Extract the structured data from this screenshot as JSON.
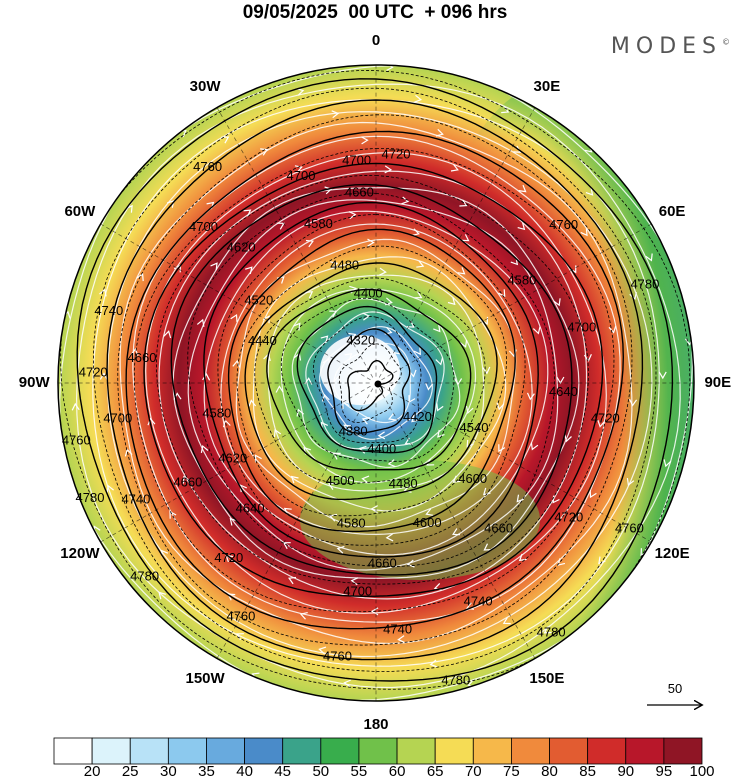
{
  "title": "09/05/2025  00 UTC  + 096 hrs",
  "brand": "MODES",
  "brand_mark": "©",
  "longitude_labels": [
    {
      "text": "0",
      "lon": 0
    },
    {
      "text": "30E",
      "lon": 30
    },
    {
      "text": "60E",
      "lon": 60
    },
    {
      "text": "90E",
      "lon": 90
    },
    {
      "text": "120E",
      "lon": 120
    },
    {
      "text": "150E",
      "lon": 150
    },
    {
      "text": "180",
      "lon": 180
    },
    {
      "text": "150W",
      "lon": -150
    },
    {
      "text": "120W",
      "lon": -120
    },
    {
      "text": "90W",
      "lon": -90
    },
    {
      "text": "60W",
      "lon": -60
    },
    {
      "text": "30W",
      "lon": -30
    }
  ],
  "contour_labels": [
    {
      "text": "4720",
      "lon": 5,
      "r": 0.72
    },
    {
      "text": "4700",
      "lon": -20,
      "r": 0.69
    },
    {
      "text": "4660",
      "lon": -5,
      "r": 0.6
    },
    {
      "text": "4760",
      "lon": -38,
      "r": 0.86
    },
    {
      "text": "4700",
      "lon": -48,
      "r": 0.73
    },
    {
      "text": "4620",
      "lon": -45,
      "r": 0.6
    },
    {
      "text": "4580",
      "lon": -20,
      "r": 0.53
    },
    {
      "text": "4480",
      "lon": -15,
      "r": 0.38
    },
    {
      "text": "4400",
      "lon": -5,
      "r": 0.28
    },
    {
      "text": "4520",
      "lon": -55,
      "r": 0.45
    },
    {
      "text": "4440",
      "lon": -70,
      "r": 0.38
    },
    {
      "text": "4320",
      "lon": -20,
      "r": 0.14
    },
    {
      "text": "4380",
      "lon": -155,
      "r": 0.17
    },
    {
      "text": "4740",
      "lon": -75,
      "r": 0.87
    },
    {
      "text": "4720",
      "lon": -88,
      "r": 0.89
    },
    {
      "text": "4700",
      "lon": -98,
      "r": 0.82
    },
    {
      "text": "4660",
      "lon": -84,
      "r": 0.74
    },
    {
      "text": "4760",
      "lon": -101,
      "r": 0.96
    },
    {
      "text": "4580",
      "lon": -101,
      "r": 0.51
    },
    {
      "text": "4780",
      "lon": -112,
      "r": 0.97
    },
    {
      "text": "4740",
      "lon": -116,
      "r": 0.84
    },
    {
      "text": "4660",
      "lon": -118,
      "r": 0.67
    },
    {
      "text": "4620",
      "lon": -118,
      "r": 0.51
    },
    {
      "text": "4640",
      "lon": -135,
      "r": 0.56
    },
    {
      "text": "4720",
      "lon": -140,
      "r": 0.72
    },
    {
      "text": "4780",
      "lon": -130,
      "r": 0.95
    },
    {
      "text": "4760",
      "lon": -150,
      "r": 0.85
    },
    {
      "text": "4580",
      "lon": -170,
      "r": 0.45
    },
    {
      "text": "4500",
      "lon": -160,
      "r": 0.33
    },
    {
      "text": "4400",
      "lon": 175,
      "r": 0.21
    },
    {
      "text": "4480",
      "lon": 165,
      "r": 0.33
    },
    {
      "text": "4420",
      "lon": 130,
      "r": 0.17
    },
    {
      "text": "4600",
      "lon": 160,
      "r": 0.47
    },
    {
      "text": "4660",
      "lon": 178,
      "r": 0.57
    },
    {
      "text": "4700",
      "lon": -175,
      "r": 0.66
    },
    {
      "text": "4760",
      "lon": -172,
      "r": 0.87
    },
    {
      "text": "4740",
      "lon": 175,
      "r": 0.78
    },
    {
      "text": "4780",
      "lon": 165,
      "r": 0.97
    },
    {
      "text": "4740",
      "lon": 155,
      "r": 0.76
    },
    {
      "text": "4660",
      "lon": 140,
      "r": 0.6
    },
    {
      "text": "4600",
      "lon": 135,
      "r": 0.43
    },
    {
      "text": "4540",
      "lon": 115,
      "r": 0.34
    },
    {
      "text": "4640",
      "lon": 93,
      "r": 0.59
    },
    {
      "text": "4700",
      "lon": 75,
      "r": 0.67
    },
    {
      "text": "4580",
      "lon": 55,
      "r": 0.56
    },
    {
      "text": "4760",
      "lon": 50,
      "r": 0.77
    },
    {
      "text": "4780",
      "lon": 70,
      "r": 0.9
    },
    {
      "text": "4720",
      "lon": 99,
      "r": 0.73
    },
    {
      "text": "4720",
      "lon": 125,
      "r": 0.74
    },
    {
      "text": "4760",
      "lon": 120,
      "r": 0.92
    },
    {
      "text": "4780",
      "lon": 145,
      "r": 0.96
    },
    {
      "text": "4700",
      "lon": -5,
      "r": 0.7
    }
  ],
  "colorbar": {
    "ticks": [
      "20",
      "25",
      "30",
      "35",
      "40",
      "45",
      "50",
      "55",
      "60",
      "65",
      "70",
      "75",
      "80",
      "85",
      "90",
      "95",
      "100"
    ],
    "colors": [
      "#ffffff",
      "#dcf3fb",
      "#b8e2f7",
      "#8cc9ee",
      "#68aade",
      "#4a8bc9",
      "#3aa38a",
      "#38ad4c",
      "#70c14a",
      "#b5d452",
      "#f5dc55",
      "#f6b84a",
      "#f08a3c",
      "#e25c31",
      "#d02c2a",
      "#b8172a",
      "#8f1525"
    ]
  },
  "reference_vector": {
    "label": "50"
  },
  "colors": {
    "background": "#ffffff",
    "contour": "#000000",
    "streamline": "#ffffff",
    "grid": "#000000"
  }
}
